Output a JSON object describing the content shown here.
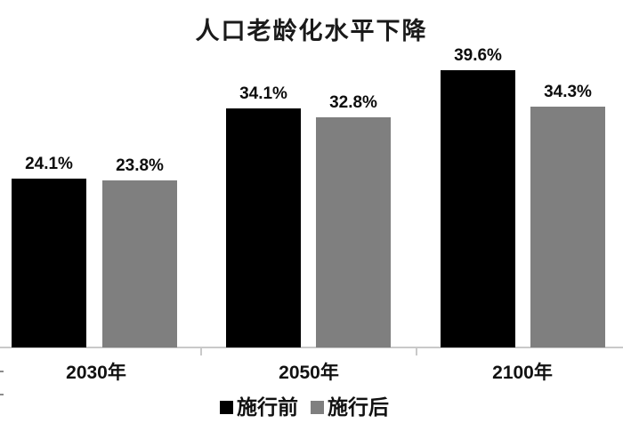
{
  "chart_data": {
    "type": "bar",
    "title": "人口老龄化水平下降",
    "categories": [
      "2030年",
      "2050年",
      "2100年"
    ],
    "series": [
      {
        "name": "施行前",
        "color": "#000000",
        "values": [
          24.1,
          34.1,
          39.6
        ]
      },
      {
        "name": "施行后",
        "color": "#7f7f7f",
        "values": [
          23.8,
          32.8,
          34.3
        ]
      }
    ],
    "value_labels": [
      [
        "24.1%",
        "34.1%",
        "39.6%"
      ],
      [
        "23.8%",
        "32.8%",
        "34.3%"
      ]
    ],
    "unit": "%",
    "ylim": [
      0,
      49.5
    ],
    "grid": false,
    "legend_position": "bottom",
    "axis_color": "#c9c9c9",
    "background": "#ffffff"
  }
}
